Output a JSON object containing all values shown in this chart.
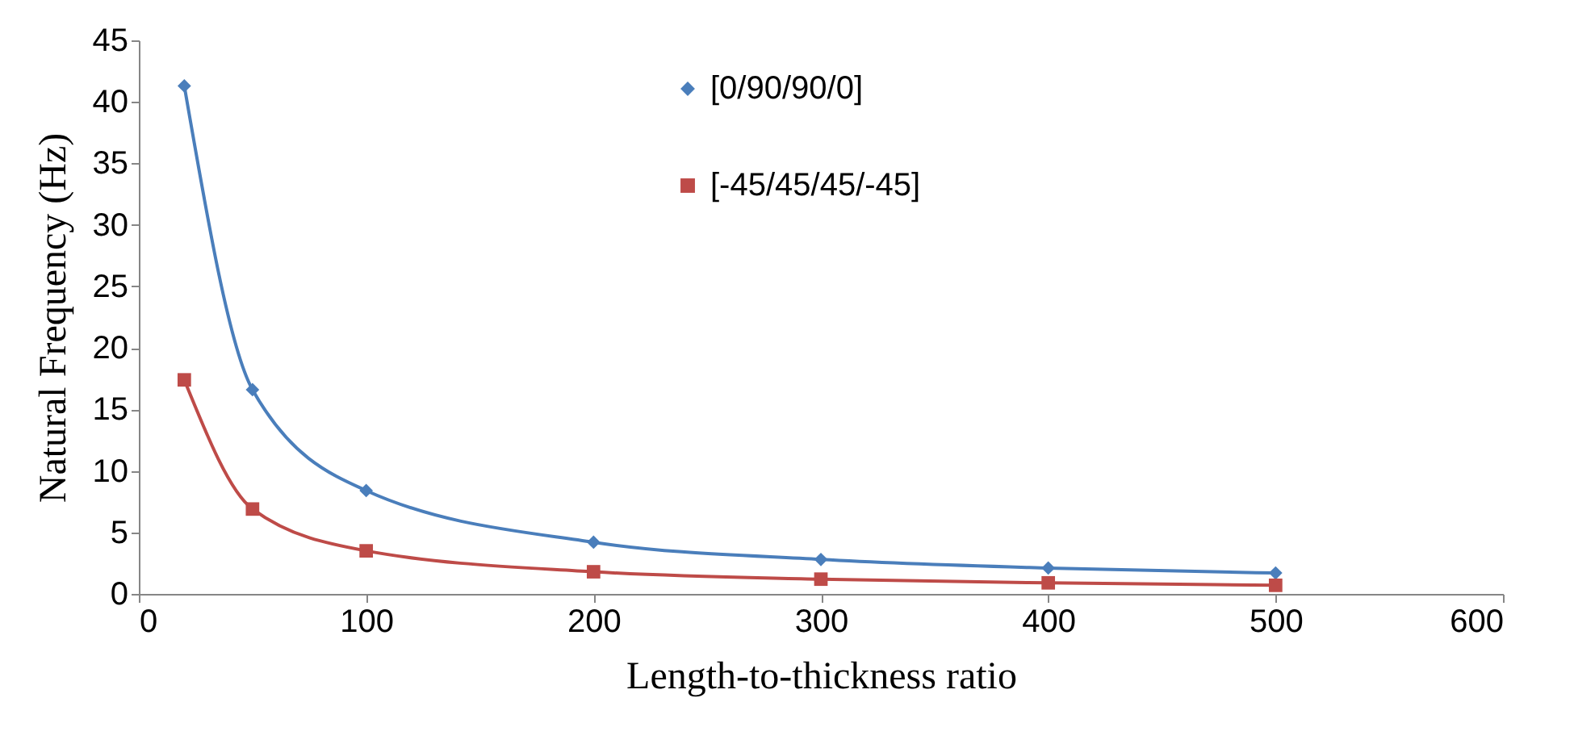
{
  "chart_data": {
    "type": "line",
    "xlabel": "Length-to-thickness ratio",
    "ylabel": "Natural Frequency (Hz)",
    "x": [
      20,
      50,
      100,
      200,
      300,
      400,
      500
    ],
    "series": [
      {
        "name": "[0/90/90/0]",
        "color": "#4a7ebb",
        "marker": "diamond",
        "values": [
          41.3,
          16.6,
          8.4,
          4.2,
          2.8,
          2.1,
          1.7
        ]
      },
      {
        "name": "[-45/45/45/-45]",
        "color": "#be4b48",
        "marker": "square",
        "values": [
          17.4,
          6.9,
          3.5,
          1.8,
          1.2,
          0.9,
          0.7
        ]
      }
    ],
    "xlim": [
      0,
      600
    ],
    "xticks": [
      0,
      100,
      200,
      300,
      400,
      500,
      600
    ],
    "ylim": [
      0,
      45
    ],
    "yticks": [
      0,
      5,
      10,
      15,
      20,
      25,
      30,
      35,
      40,
      45
    ],
    "grid": false,
    "legend": "top right",
    "line_style": "solid"
  }
}
